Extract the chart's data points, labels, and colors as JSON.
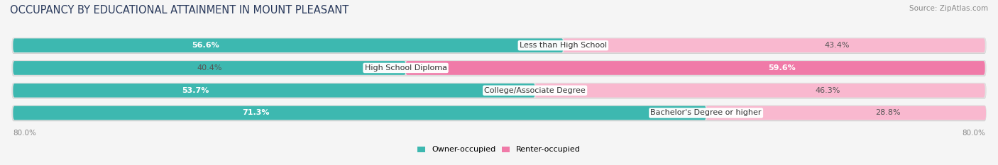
{
  "title": "OCCUPANCY BY EDUCATIONAL ATTAINMENT IN MOUNT PLEASANT",
  "source": "Source: ZipAtlas.com",
  "categories": [
    "Less than High School",
    "High School Diploma",
    "College/Associate Degree",
    "Bachelor's Degree or higher"
  ],
  "owner_pct": [
    56.6,
    40.4,
    53.7,
    71.3
  ],
  "renter_pct": [
    43.4,
    59.6,
    46.3,
    28.8
  ],
  "owner_color": "#3db8b0",
  "renter_color": "#f07aa8",
  "renter_color_light": "#f9b8cf",
  "bg_color": "#f5f5f5",
  "bar_bg_color": "#e2e2e2",
  "bar_bg_shadow": "#d0d0d0",
  "bar_height": 0.62,
  "x_max": 80.0,
  "x_left_label": "80.0%",
  "x_right_label": "80.0%",
  "legend_owner": "Owner-occupied",
  "legend_renter": "Renter-occupied",
  "title_fontsize": 10.5,
  "source_fontsize": 7.5,
  "label_fontsize": 8,
  "category_fontsize": 8,
  "owner_label_threshold": 45,
  "renter_label_threshold": 35
}
